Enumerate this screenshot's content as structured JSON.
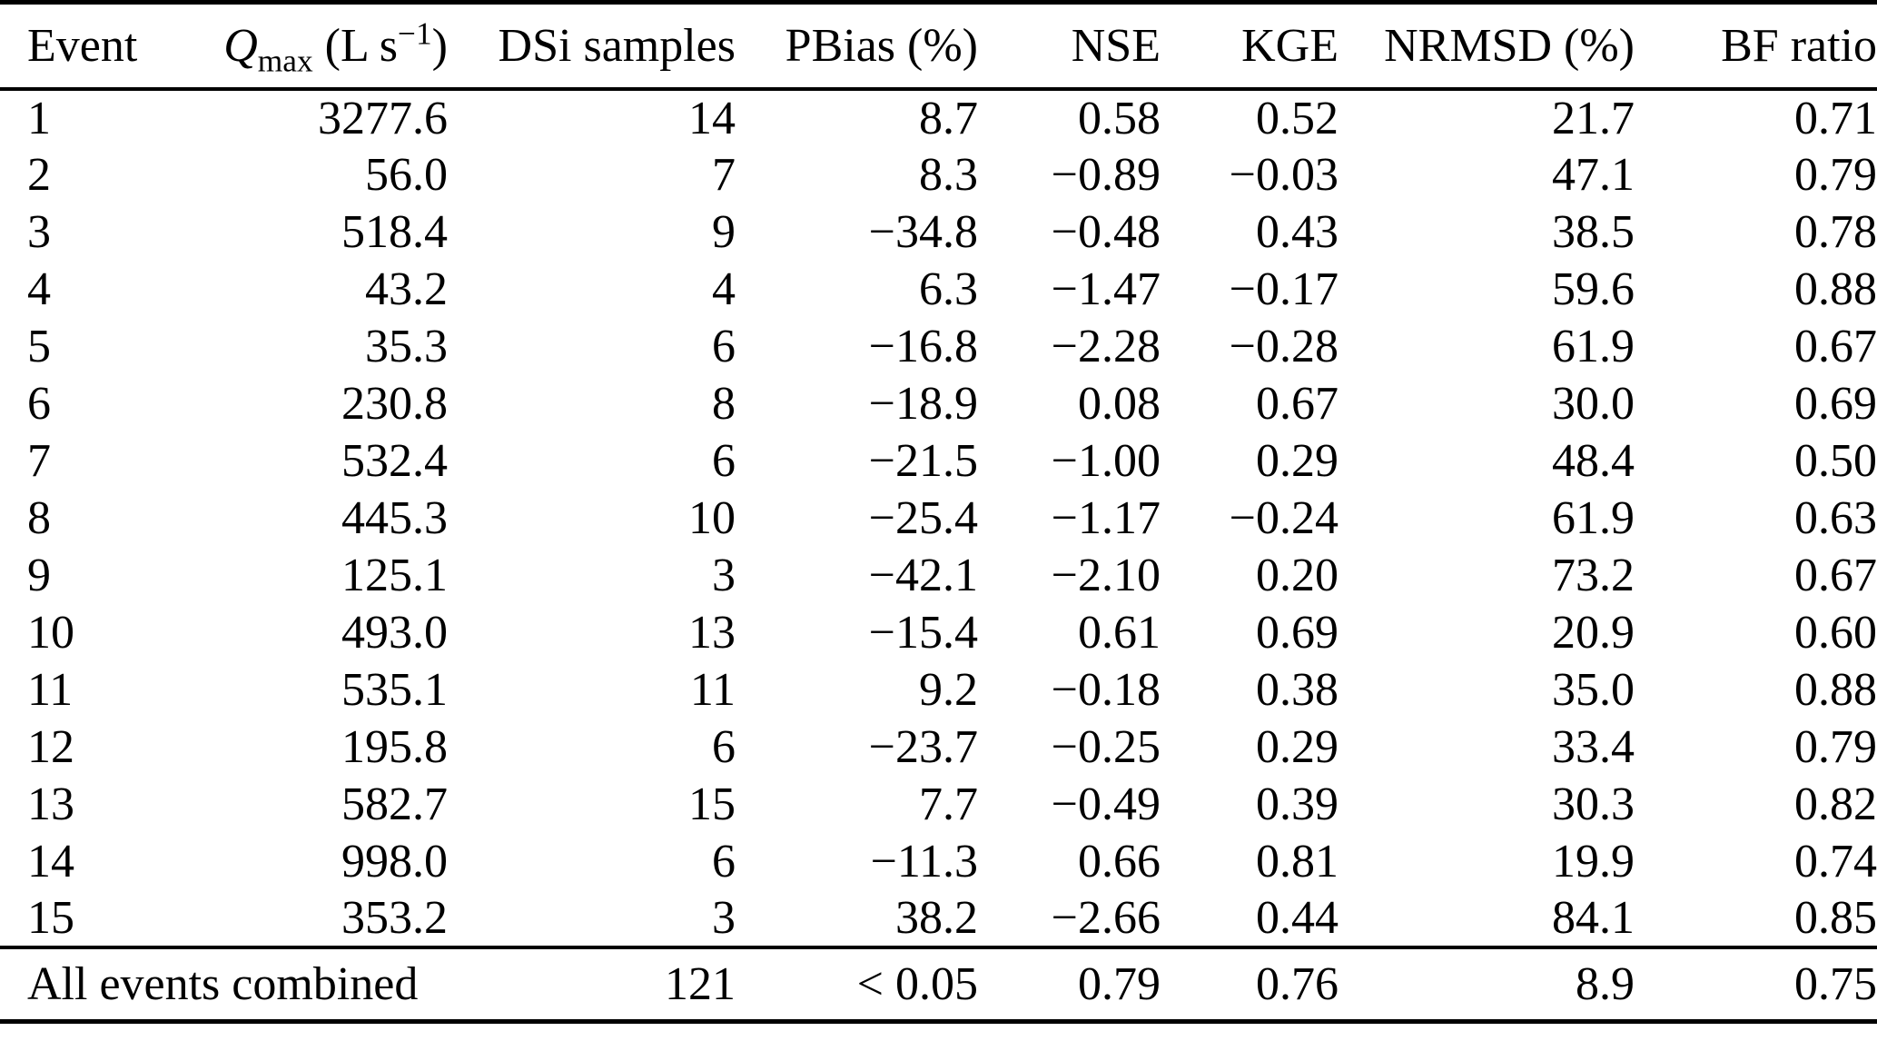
{
  "table": {
    "column_keys": [
      "event",
      "qmax",
      "dsi",
      "pbias",
      "nse",
      "kge",
      "nrmsd",
      "bf"
    ],
    "header": {
      "event": "Event",
      "qmax": {
        "var": "Q",
        "sub": "max",
        "unit_pre": " (L s",
        "sup": "−1",
        "unit_post": ")"
      },
      "dsi": "DSi samples",
      "pbias": "PBias (%)",
      "nse": "NSE",
      "kge": "KGE",
      "nrmsd": "NRMSD (%)",
      "bf": "BF ratio"
    },
    "rows": [
      {
        "event": "1",
        "qmax": "3277.6",
        "dsi": "14",
        "pbias": "8.7",
        "nse": "0.58",
        "kge": "0.52",
        "nrmsd": "21.7",
        "bf": "0.71"
      },
      {
        "event": "2",
        "qmax": "56.0",
        "dsi": "7",
        "pbias": "8.3",
        "nse": "−0.89",
        "kge": "−0.03",
        "nrmsd": "47.1",
        "bf": "0.79"
      },
      {
        "event": "3",
        "qmax": "518.4",
        "dsi": "9",
        "pbias": "−34.8",
        "nse": "−0.48",
        "kge": "0.43",
        "nrmsd": "38.5",
        "bf": "0.78"
      },
      {
        "event": "4",
        "qmax": "43.2",
        "dsi": "4",
        "pbias": "6.3",
        "nse": "−1.47",
        "kge": "−0.17",
        "nrmsd": "59.6",
        "bf": "0.88"
      },
      {
        "event": "5",
        "qmax": "35.3",
        "dsi": "6",
        "pbias": "−16.8",
        "nse": "−2.28",
        "kge": "−0.28",
        "nrmsd": "61.9",
        "bf": "0.67"
      },
      {
        "event": "6",
        "qmax": "230.8",
        "dsi": "8",
        "pbias": "−18.9",
        "nse": "0.08",
        "kge": "0.67",
        "nrmsd": "30.0",
        "bf": "0.69"
      },
      {
        "event": "7",
        "qmax": "532.4",
        "dsi": "6",
        "pbias": "−21.5",
        "nse": "−1.00",
        "kge": "0.29",
        "nrmsd": "48.4",
        "bf": "0.50"
      },
      {
        "event": "8",
        "qmax": "445.3",
        "dsi": "10",
        "pbias": "−25.4",
        "nse": "−1.17",
        "kge": "−0.24",
        "nrmsd": "61.9",
        "bf": "0.63"
      },
      {
        "event": "9",
        "qmax": "125.1",
        "dsi": "3",
        "pbias": "−42.1",
        "nse": "−2.10",
        "kge": "0.20",
        "nrmsd": "73.2",
        "bf": "0.67"
      },
      {
        "event": "10",
        "qmax": "493.0",
        "dsi": "13",
        "pbias": "−15.4",
        "nse": "0.61",
        "kge": "0.69",
        "nrmsd": "20.9",
        "bf": "0.60"
      },
      {
        "event": "11",
        "qmax": "535.1",
        "dsi": "11",
        "pbias": "9.2",
        "nse": "−0.18",
        "kge": "0.38",
        "nrmsd": "35.0",
        "bf": "0.88"
      },
      {
        "event": "12",
        "qmax": "195.8",
        "dsi": "6",
        "pbias": "−23.7",
        "nse": "−0.25",
        "kge": "0.29",
        "nrmsd": "33.4",
        "bf": "0.79"
      },
      {
        "event": "13",
        "qmax": "582.7",
        "dsi": "15",
        "pbias": "7.7",
        "nse": "−0.49",
        "kge": "0.39",
        "nrmsd": "30.3",
        "bf": "0.82"
      },
      {
        "event": "14",
        "qmax": "998.0",
        "dsi": "6",
        "pbias": "−11.3",
        "nse": "0.66",
        "kge": "0.81",
        "nrmsd": "19.9",
        "bf": "0.74"
      },
      {
        "event": "15",
        "qmax": "353.2",
        "dsi": "3",
        "pbias": "38.2",
        "nse": "−2.66",
        "kge": "0.44",
        "nrmsd": "84.1",
        "bf": "0.85"
      }
    ],
    "footer": {
      "label": "All events combined",
      "dsi": "121",
      "pbias": "< 0.05",
      "nse": "0.79",
      "kge": "0.76",
      "nrmsd": "8.9",
      "bf": "0.75"
    }
  },
  "colors": {
    "text": "#000000",
    "background": "#ffffff",
    "rule": "#000000"
  }
}
